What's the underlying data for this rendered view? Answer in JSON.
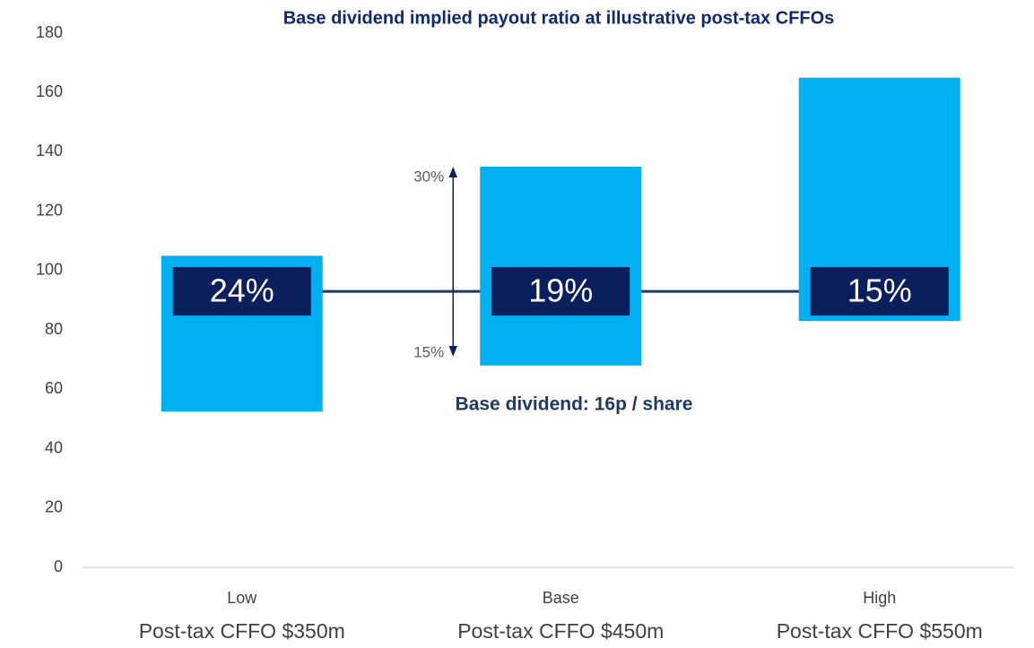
{
  "chart_data": {
    "type": "floating_bar",
    "title": "Base dividend implied payout ratio at illustrative post-tax CFFOs",
    "categories": [
      "Low",
      "Base",
      "High"
    ],
    "category_sublabels": [
      "Post-tax CFFO $350m",
      "Post-tax CFFO $450m",
      "Post-tax CFFO $550m"
    ],
    "values_low": [
      52.5,
      68,
      83
    ],
    "values_high": [
      105,
      135,
      165
    ],
    "color": "#00b0f0",
    "dividend_line": 93,
    "payout_labels": [
      "24%",
      "19%",
      "15%"
    ],
    "range_arrow": {
      "top_label": "30%",
      "bottom_label": "15%"
    },
    "annotation": "Base dividend: 16p / share",
    "ylim": [
      0,
      180
    ],
    "yticks": [
      0,
      20,
      40,
      60,
      80,
      100,
      120,
      140,
      160,
      180
    ],
    "grid": false
  }
}
